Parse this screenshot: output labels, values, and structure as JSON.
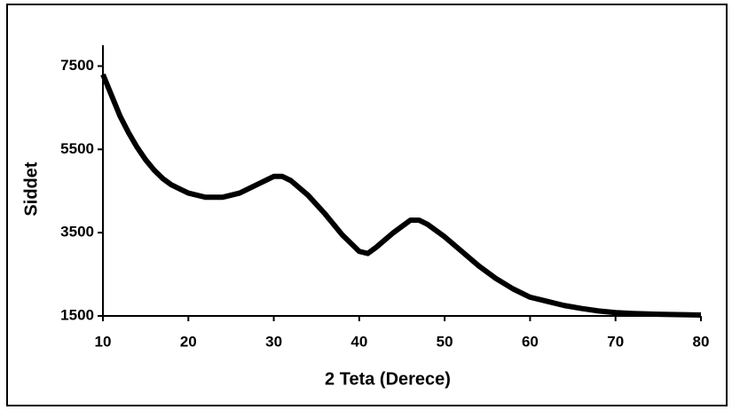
{
  "chart_data": {
    "type": "line",
    "x_label": "2 Teta (Derece)",
    "y_label": "Siddet",
    "color": "#000000",
    "x": [
      10,
      11,
      12,
      13,
      14,
      15,
      16,
      17,
      18,
      19,
      20,
      22,
      24,
      26,
      28,
      30,
      31,
      32,
      34,
      36,
      38,
      40,
      41,
      42,
      44,
      46,
      47,
      48,
      50,
      52,
      54,
      56,
      58,
      60,
      62,
      64,
      66,
      68,
      70,
      72,
      75,
      78,
      80
    ],
    "values": [
      7300,
      6800,
      6300,
      5900,
      5550,
      5250,
      5000,
      4800,
      4650,
      4550,
      4450,
      4350,
      4350,
      4450,
      4650,
      4850,
      4850,
      4750,
      4400,
      3950,
      3450,
      3050,
      3000,
      3150,
      3500,
      3800,
      3800,
      3700,
      3400,
      3050,
      2700,
      2400,
      2150,
      1950,
      1850,
      1750,
      1680,
      1620,
      1580,
      1560,
      1540,
      1530,
      1520
    ],
    "xlim": [
      10,
      80
    ],
    "xticks": [
      10,
      20,
      30,
      40,
      50,
      60,
      70,
      80
    ],
    "ylim": [
      1500,
      8000
    ],
    "yticks": [
      1500,
      3500,
      5500,
      7500
    ]
  }
}
